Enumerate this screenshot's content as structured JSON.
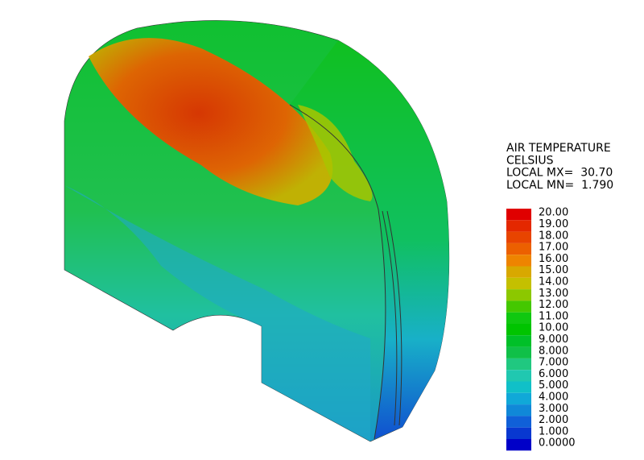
{
  "legend": {
    "title": [
      "AIR TEMPERATURE",
      "CELSIUS",
      "LOCAL MX=  30.70",
      "LOCAL MN=  1.790"
    ],
    "levels": [
      {
        "label": "20.00",
        "color": "#e00000"
      },
      {
        "label": "19.00",
        "color": "#e42800"
      },
      {
        "label": "18.00",
        "color": "#e84400"
      },
      {
        "label": "17.00",
        "color": "#ec6000"
      },
      {
        "label": "16.00",
        "color": "#ee8400"
      },
      {
        "label": "15.00",
        "color": "#d8a800"
      },
      {
        "label": "14.00",
        "color": "#c4c000"
      },
      {
        "label": "13.00",
        "color": "#8cc800"
      },
      {
        "label": "12.00",
        "color": "#44c800"
      },
      {
        "label": "11.00",
        "color": "#10c810"
      },
      {
        "label": "10.00",
        "color": "#00c400"
      },
      {
        "label": "9.000",
        "color": "#00c028"
      },
      {
        "label": "8.000",
        "color": "#10c048"
      },
      {
        "label": "7.000",
        "color": "#20c880"
      },
      {
        "label": "6.000",
        "color": "#20c8b0"
      },
      {
        "label": "5.000",
        "color": "#10c0c8"
      },
      {
        "label": "4.000",
        "color": "#10a8d8"
      },
      {
        "label": "3.000",
        "color": "#1088d8"
      },
      {
        "label": "2.000",
        "color": "#1060d8"
      },
      {
        "label": "1.000",
        "color": "#0838d0"
      },
      {
        "label": "0.0000",
        "color": "#0000c8"
      }
    ]
  }
}
